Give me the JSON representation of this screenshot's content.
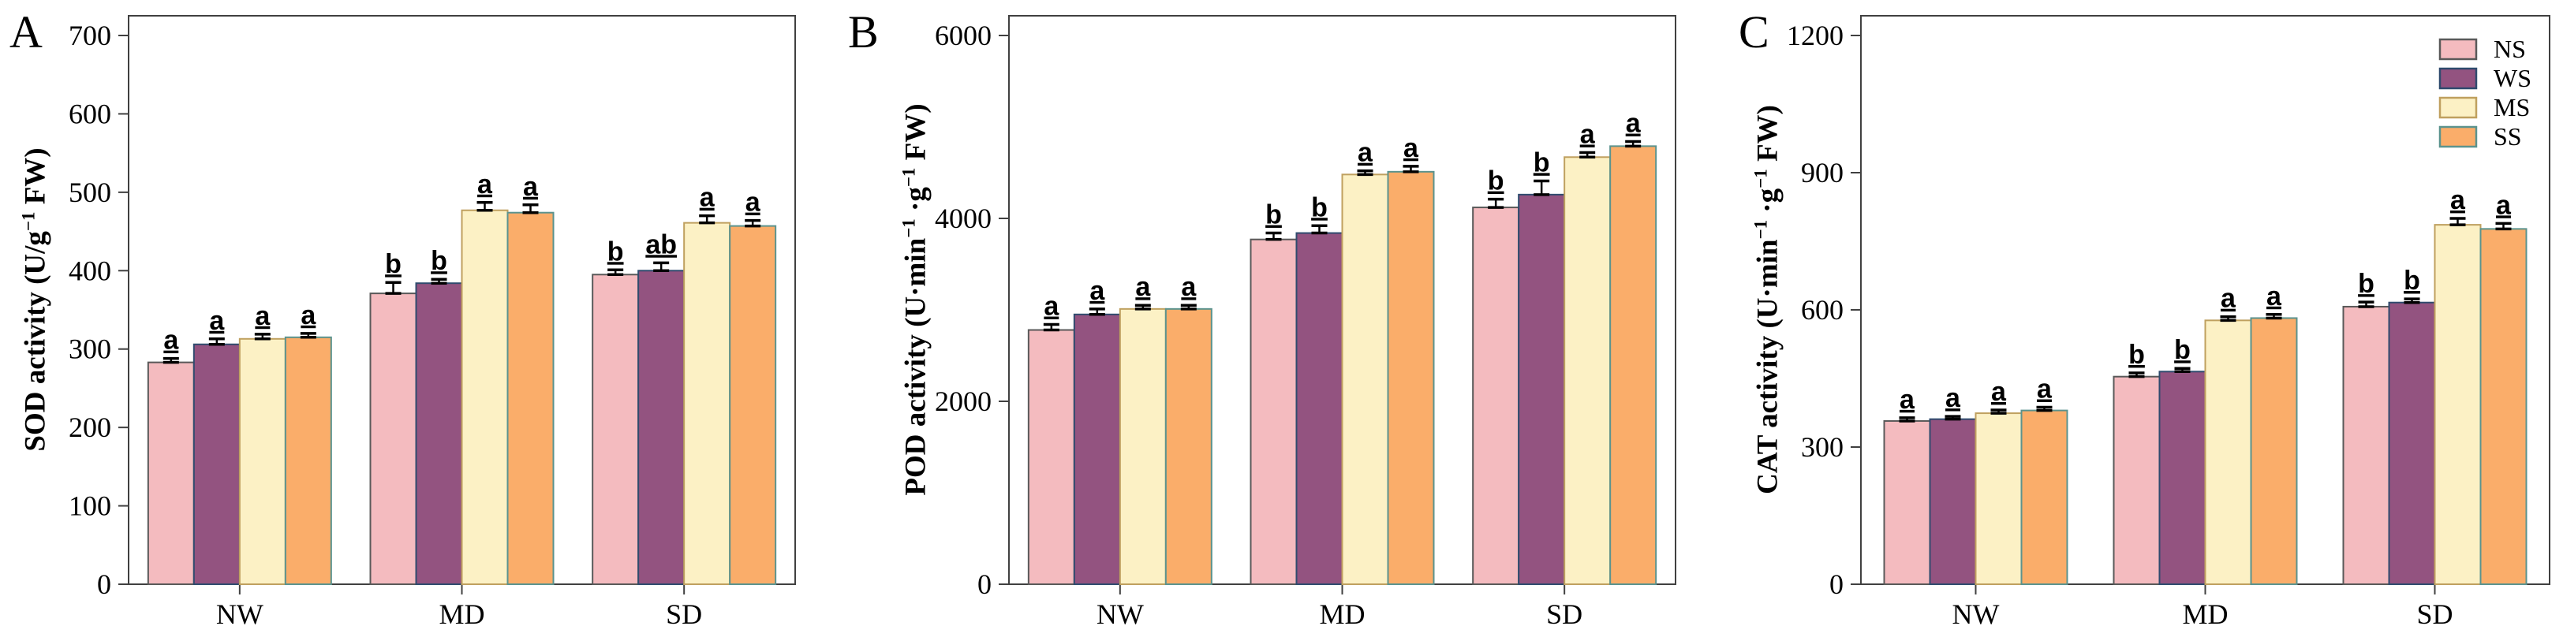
{
  "figure": {
    "background": "#ffffff",
    "axis_color": "#404040",
    "errorbar_color": "#000000",
    "series_legend": [
      {
        "label": "NS",
        "fill": "#F4BBBF",
        "edge": "#595959"
      },
      {
        "label": "WS",
        "fill": "#935380",
        "edge": "#2F4B6E"
      },
      {
        "label": "MS",
        "fill": "#FCF1C5",
        "edge": "#BFA05F"
      },
      {
        "label": "SS",
        "fill": "#FAAD6A",
        "edge": "#5B938E"
      }
    ]
  },
  "chart_data": [
    {
      "type": "bar",
      "panel_letter": "A",
      "ylabel": "SOD activity (U/g⁻¹ FW)",
      "xlabel": "",
      "categories": [
        "NW",
        "MD",
        "SD"
      ],
      "ylim": [
        0,
        700
      ],
      "yticks": [
        0,
        100,
        200,
        300,
        400,
        500,
        600,
        700
      ],
      "grid": false,
      "legend": false,
      "series": [
        {
          "name": "NS",
          "values": [
            283,
            371,
            395
          ],
          "errors": [
            5,
            14,
            6
          ],
          "letters": [
            "a",
            "b",
            "b"
          ]
        },
        {
          "name": "WS",
          "values": [
            306,
            384,
            400
          ],
          "errors": [
            7,
            5,
            10
          ],
          "letters": [
            "a",
            "b",
            "ab"
          ]
        },
        {
          "name": "MS",
          "values": [
            313,
            477,
            461
          ],
          "errors": [
            6,
            10,
            9
          ],
          "letters": [
            "a",
            "a",
            "a"
          ]
        },
        {
          "name": "SS",
          "values": [
            315,
            474,
            457
          ],
          "errors": [
            5,
            10,
            7
          ],
          "letters": [
            "a",
            "a",
            "a"
          ]
        }
      ]
    },
    {
      "type": "bar",
      "panel_letter": "B",
      "ylabel": "POD activity (U·min⁻¹ ·g⁻¹ FW)",
      "xlabel": "",
      "categories": [
        "NW",
        "MD",
        "SD"
      ],
      "ylim": [
        0,
        6000
      ],
      "yticks": [
        0,
        2000,
        4000,
        6000
      ],
      "grid": false,
      "legend": false,
      "series": [
        {
          "name": "NS",
          "values": [
            2780,
            3770,
            4120
          ],
          "errors": [
            60,
            70,
            90
          ],
          "letters": [
            "a",
            "b",
            "b"
          ]
        },
        {
          "name": "WS",
          "values": [
            2950,
            3840,
            4260
          ],
          "errors": [
            60,
            80,
            150
          ],
          "letters": [
            "a",
            "b",
            "b"
          ]
        },
        {
          "name": "MS",
          "values": [
            3010,
            4480,
            4670
          ],
          "errors": [
            40,
            40,
            50
          ],
          "letters": [
            "a",
            "a",
            "a"
          ]
        },
        {
          "name": "SS",
          "values": [
            3010,
            4510,
            4790
          ],
          "errors": [
            40,
            60,
            50
          ],
          "letters": [
            "a",
            "a",
            "a"
          ]
        }
      ]
    },
    {
      "type": "bar",
      "panel_letter": "C",
      "ylabel": "CAT activity (U·min⁻¹ ·g⁻¹ FW)",
      "xlabel": "",
      "categories": [
        "NW",
        "MD",
        "SD"
      ],
      "ylim": [
        0,
        1200
      ],
      "yticks": [
        0,
        300,
        600,
        900,
        1200
      ],
      "grid": false,
      "legend": true,
      "series": [
        {
          "name": "NS",
          "values": [
            357,
            454,
            607
          ],
          "errors": [
            7,
            8,
            10
          ],
          "letters": [
            "a",
            "b",
            "b"
          ]
        },
        {
          "name": "WS",
          "values": [
            361,
            465,
            616
          ],
          "errors": [
            6,
            7,
            8
          ],
          "letters": [
            "a",
            "b",
            "b"
          ]
        },
        {
          "name": "MS",
          "values": [
            374,
            577,
            786
          ],
          "errors": [
            7,
            8,
            14
          ],
          "letters": [
            "a",
            "a",
            "a"
          ]
        },
        {
          "name": "SS",
          "values": [
            380,
            582,
            777
          ],
          "errors": [
            7,
            8,
            12
          ],
          "letters": [
            "a",
            "a",
            "a"
          ]
        }
      ]
    }
  ]
}
